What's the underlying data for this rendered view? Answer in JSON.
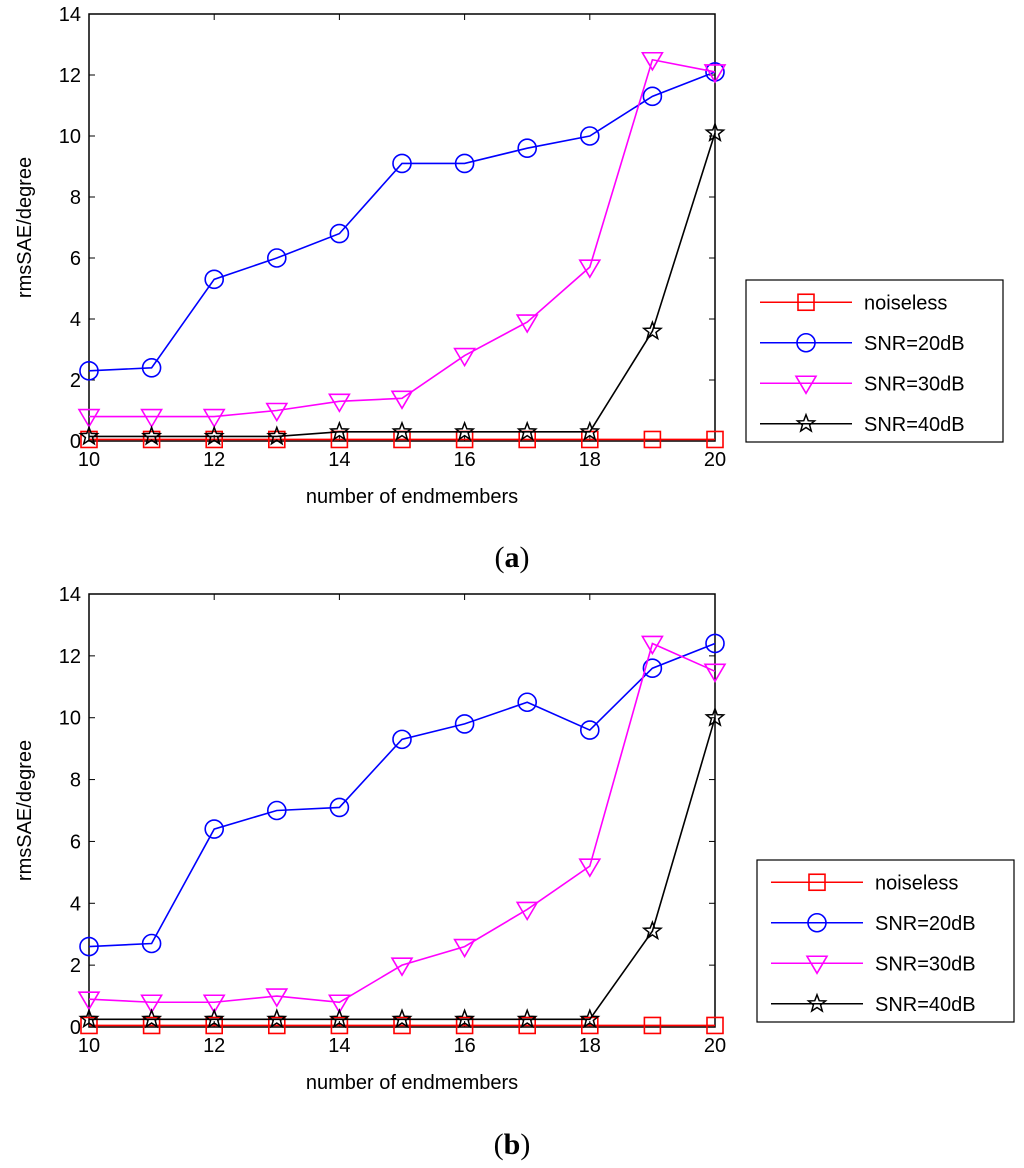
{
  "chart_data": [
    {
      "type": "line",
      "panel": "a",
      "caption": "a",
      "xlabel": "number of endmembers",
      "ylabel": "rmsSAE/degree",
      "xlim": [
        10,
        20
      ],
      "ylim": [
        0,
        14
      ],
      "xticks": [
        10,
        12,
        14,
        16,
        18,
        20
      ],
      "yticks": [
        0,
        2,
        4,
        6,
        8,
        10,
        12,
        14
      ],
      "x": [
        10,
        11,
        12,
        13,
        14,
        15,
        16,
        17,
        18,
        19,
        20
      ],
      "legend_position": "right",
      "series": [
        {
          "name": "noiseless",
          "color": "#ff0000",
          "marker": "square",
          "values": [
            0.05,
            0.05,
            0.05,
            0.05,
            0.05,
            0.05,
            0.05,
            0.05,
            0.05,
            0.05,
            0.05
          ]
        },
        {
          "name": "SNR=20dB",
          "color": "#0000ff",
          "marker": "circle",
          "values": [
            2.3,
            2.4,
            5.3,
            6.0,
            6.8,
            9.1,
            9.1,
            9.6,
            10.0,
            11.3,
            12.1
          ]
        },
        {
          "name": "SNR=30dB",
          "color": "#ff00ff",
          "marker": "triangle-down",
          "values": [
            0.8,
            0.8,
            0.8,
            1.0,
            1.3,
            1.4,
            2.8,
            3.9,
            5.7,
            12.5,
            12.1
          ]
        },
        {
          "name": "SNR=40dB",
          "color": "#000000",
          "marker": "star",
          "values": [
            0.15,
            0.15,
            0.15,
            0.15,
            0.3,
            0.3,
            0.3,
            0.3,
            0.3,
            3.6,
            10.1
          ]
        }
      ]
    },
    {
      "type": "line",
      "panel": "b",
      "caption": "b",
      "xlabel": "number of endmembers",
      "ylabel": "rmsSAE/degree",
      "xlim": [
        10,
        20
      ],
      "ylim": [
        0,
        14
      ],
      "xticks": [
        10,
        12,
        14,
        16,
        18,
        20
      ],
      "yticks": [
        0,
        2,
        4,
        6,
        8,
        10,
        12,
        14
      ],
      "x": [
        10,
        11,
        12,
        13,
        14,
        15,
        16,
        17,
        18,
        19,
        20
      ],
      "legend_position": "right",
      "series": [
        {
          "name": "noiseless",
          "color": "#ff0000",
          "marker": "square",
          "values": [
            0.05,
            0.05,
            0.05,
            0.05,
            0.05,
            0.05,
            0.05,
            0.05,
            0.05,
            0.05,
            0.05
          ]
        },
        {
          "name": "SNR=20dB",
          "color": "#0000ff",
          "marker": "circle",
          "values": [
            2.6,
            2.7,
            6.4,
            7.0,
            7.1,
            9.3,
            9.8,
            10.5,
            9.6,
            11.6,
            12.4
          ]
        },
        {
          "name": "SNR=30dB",
          "color": "#ff00ff",
          "marker": "triangle-down",
          "values": [
            0.9,
            0.8,
            0.8,
            1.0,
            0.8,
            2.0,
            2.6,
            3.8,
            5.2,
            12.4,
            11.5
          ]
        },
        {
          "name": "SNR=40dB",
          "color": "#000000",
          "marker": "star",
          "values": [
            0.25,
            0.25,
            0.25,
            0.25,
            0.25,
            0.25,
            0.25,
            0.25,
            0.25,
            3.1,
            10.0
          ]
        }
      ]
    }
  ]
}
